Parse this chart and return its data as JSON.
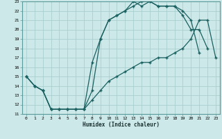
{
  "xlabel": "Humidex (Indice chaleur)",
  "bg_color": "#cce8e8",
  "grid_color": "#aacece",
  "line_color": "#1a6060",
  "xlim": [
    -0.5,
    23.5
  ],
  "ylim": [
    11,
    23
  ],
  "xticks": [
    0,
    1,
    2,
    3,
    4,
    5,
    6,
    7,
    8,
    9,
    10,
    11,
    12,
    13,
    14,
    15,
    16,
    17,
    18,
    19,
    20,
    21,
    22,
    23
  ],
  "yticks": [
    11,
    12,
    13,
    14,
    15,
    16,
    17,
    18,
    19,
    20,
    21,
    22,
    23
  ],
  "line1_x": [
    0,
    1,
    2,
    3,
    4,
    5,
    6,
    7,
    8,
    9,
    10,
    11,
    12,
    13,
    14,
    15,
    16,
    17,
    18,
    19,
    20,
    21
  ],
  "line1_y": [
    15.0,
    14.0,
    13.5,
    11.5,
    11.5,
    11.5,
    11.5,
    11.5,
    16.5,
    19.0,
    21.0,
    21.5,
    22.0,
    23.0,
    22.5,
    23.0,
    22.5,
    22.5,
    22.5,
    22.0,
    21.0,
    17.5
  ],
  "line2_x": [
    0,
    1,
    2,
    3,
    4,
    5,
    6,
    7,
    8,
    9,
    10,
    11,
    12,
    13,
    14,
    15,
    16,
    17,
    18,
    19,
    20,
    21,
    22
  ],
  "line2_y": [
    15.0,
    14.0,
    13.5,
    11.5,
    11.5,
    11.5,
    11.5,
    11.5,
    13.5,
    19.0,
    21.0,
    21.5,
    22.0,
    22.5,
    23.0,
    23.0,
    22.5,
    22.5,
    22.5,
    21.5,
    20.0,
    20.0,
    18.0
  ],
  "line3_x": [
    0,
    1,
    2,
    3,
    4,
    5,
    6,
    7,
    8,
    9,
    10,
    11,
    12,
    13,
    14,
    15,
    16,
    17,
    18,
    19,
    20,
    21,
    22,
    23
  ],
  "line3_y": [
    15.0,
    14.0,
    13.5,
    11.5,
    11.5,
    11.5,
    11.5,
    11.5,
    12.5,
    13.5,
    14.5,
    15.0,
    15.5,
    16.0,
    16.5,
    16.5,
    17.0,
    17.0,
    17.5,
    18.0,
    19.0,
    21.0,
    21.0,
    17.0
  ]
}
